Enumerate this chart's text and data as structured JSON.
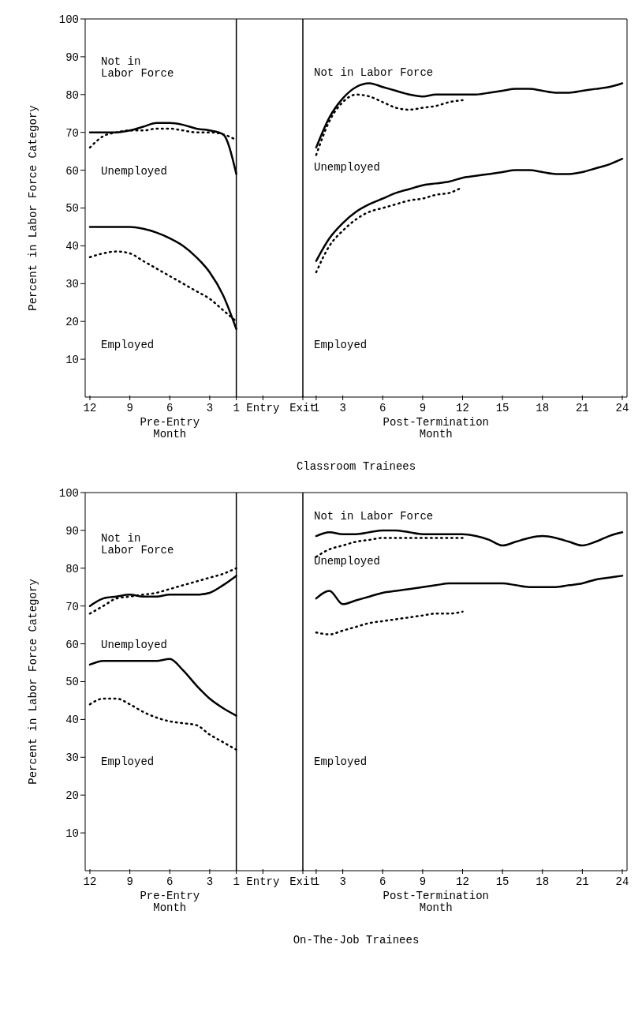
{
  "chart_data": [
    {
      "type": "line",
      "xlabel": "Classroom Trainees",
      "ylabel": "Percent in Labor Force Category",
      "categories": [
        "12",
        null,
        null,
        "9",
        null,
        null,
        "6",
        null,
        null,
        "3",
        null,
        "1",
        null,
        "Entry",
        null,
        null,
        "Exit",
        "1",
        null,
        "3",
        null,
        null,
        "6",
        null,
        null,
        "9",
        null,
        null,
        "12",
        null,
        null,
        "15",
        null,
        null,
        "18",
        null,
        null,
        "21",
        null,
        null,
        "24"
      ],
      "series": [
        {
          "color": "#000000",
          "line_style": "solid",
          "values": [
            70,
            70,
            70,
            70.5,
            71.5,
            72.5,
            72.5,
            72,
            71,
            70.5,
            69.5,
            59,
            null,
            null,
            null,
            null,
            null,
            66,
            74,
            79,
            82,
            83,
            82,
            81,
            80,
            79.5,
            80,
            80,
            80,
            80,
            80.5,
            81,
            81.5,
            81.5,
            81,
            80.5,
            80.5,
            81,
            81.5,
            82,
            83
          ]
        },
        {
          "color": "#000000",
          "line_style": "dotted",
          "values": [
            66,
            69,
            70,
            70.5,
            70.5,
            71,
            71,
            70.5,
            70,
            70,
            69.5,
            68,
            null,
            null,
            null,
            null,
            null,
            64,
            73,
            78,
            80,
            79.5,
            78,
            76.5,
            76,
            76.5,
            77,
            78,
            78.5,
            null,
            null,
            null,
            null,
            null,
            null,
            null,
            null,
            null,
            null,
            null,
            null
          ]
        },
        {
          "color": "#000000",
          "line_style": "solid",
          "values": [
            45,
            45,
            45,
            45,
            44.5,
            43.5,
            42,
            40,
            37,
            33,
            27,
            18,
            null,
            null,
            null,
            null,
            null,
            36,
            42,
            46,
            49,
            51,
            52.5,
            54,
            55,
            56,
            56.5,
            57,
            58,
            58.5,
            59,
            59.5,
            60,
            60,
            59.5,
            59,
            59,
            59.5,
            60.5,
            61.5,
            63
          ]
        },
        {
          "color": "#000000",
          "line_style": "dotted",
          "values": [
            37,
            38,
            38.5,
            38,
            36,
            34,
            32,
            30,
            28,
            26,
            23,
            20,
            null,
            null,
            null,
            null,
            null,
            33,
            40,
            44,
            47,
            49,
            50,
            51,
            52,
            52.5,
            53.5,
            54,
            55.5,
            null,
            null,
            null,
            null,
            null,
            null,
            null,
            null,
            null,
            null,
            null,
            null
          ]
        }
      ],
      "ylim": [
        0,
        100
      ],
      "yticks": [
        10,
        20,
        30,
        40,
        50,
        60,
        70,
        80,
        90,
        100
      ],
      "grid": false,
      "legend": false,
      "marker": "none",
      "ref_lines": [
        {
          "axis": "x",
          "value": "1",
          "color": "#000000"
        },
        {
          "axis": "x",
          "value": "Exit",
          "color": "#000000"
        }
      ],
      "annotations": [
        "Not in\nLabor Force",
        "Unemployed",
        "Employed",
        "Not in Labor Force",
        "Unemployed",
        "Employed",
        "Pre-Entry\nMonth",
        "Post-Termination\nMonth"
      ]
    },
    {
      "type": "line",
      "xlabel": "On-The-Job Trainees",
      "ylabel": "Percent in Labor Force Category",
      "categories": [
        "12",
        null,
        null,
        "9",
        null,
        null,
        "6",
        null,
        null,
        "3",
        null,
        "1",
        null,
        "Entry",
        null,
        null,
        "Exit",
        "1",
        null,
        "3",
        null,
        null,
        "6",
        null,
        null,
        "9",
        null,
        null,
        "12",
        null,
        null,
        "15",
        null,
        null,
        "18",
        null,
        null,
        "21",
        null,
        null,
        "24"
      ],
      "series": [
        {
          "color": "#000000",
          "line_style": "solid",
          "values": [
            70,
            72,
            72.5,
            73,
            72.5,
            72.5,
            73,
            73,
            73,
            73.5,
            75.5,
            78,
            null,
            null,
            null,
            null,
            null,
            88.5,
            89.5,
            89,
            89,
            89.5,
            90,
            90,
            89.5,
            89,
            89,
            89,
            89,
            88.5,
            87.5,
            86,
            87,
            88,
            88.5,
            88,
            87,
            86,
            87,
            88.5,
            89.5
          ]
        },
        {
          "color": "#000000",
          "line_style": "dotted",
          "values": [
            68,
            70,
            72,
            72.5,
            73,
            73.5,
            74.5,
            75.5,
            76.5,
            77.5,
            78.5,
            80,
            null,
            null,
            null,
            null,
            null,
            83,
            85,
            86,
            87,
            87.5,
            88,
            88,
            88,
            88,
            88,
            88,
            88,
            null,
            null,
            null,
            null,
            null,
            null,
            null,
            null,
            null,
            null,
            null,
            null
          ]
        },
        {
          "color": "#000000",
          "line_style": "solid",
          "values": [
            54.5,
            55.5,
            55.5,
            55.5,
            55.5,
            55.5,
            56,
            53,
            49,
            45.5,
            43,
            41,
            null,
            null,
            null,
            null,
            null,
            72,
            74,
            70.5,
            71.5,
            72.5,
            73.5,
            74,
            74.5,
            75,
            75.5,
            76,
            76,
            76,
            76,
            76,
            75.5,
            75,
            75,
            75,
            75.5,
            76,
            77,
            77.5,
            78
          ]
        },
        {
          "color": "#000000",
          "line_style": "dotted",
          "values": [
            44,
            45.5,
            45.5,
            44,
            42,
            40.5,
            39.5,
            39,
            38.5,
            36,
            34,
            32,
            null,
            null,
            null,
            null,
            null,
            63,
            62.5,
            63.5,
            64.5,
            65.5,
            66,
            66.5,
            67,
            67.5,
            68,
            68,
            68.5,
            null,
            null,
            null,
            null,
            null,
            null,
            null,
            null,
            null,
            null,
            null,
            null
          ]
        }
      ],
      "ylim": [
        0,
        100
      ],
      "yticks": [
        10,
        20,
        30,
        40,
        50,
        60,
        70,
        80,
        90,
        100
      ],
      "grid": false,
      "legend": false,
      "marker": "none",
      "ref_lines": [
        {
          "axis": "x",
          "value": "1",
          "color": "#000000"
        },
        {
          "axis": "x",
          "value": "Exit",
          "color": "#000000"
        }
      ],
      "annotations": [
        "Not in\nLabor Force",
        "Unemployed",
        "Employed",
        "Not in Labor Force",
        "Unemployed",
        "Employed",
        "Pre-Entry\nMonth",
        "Post-Termination\nMonth"
      ]
    }
  ]
}
